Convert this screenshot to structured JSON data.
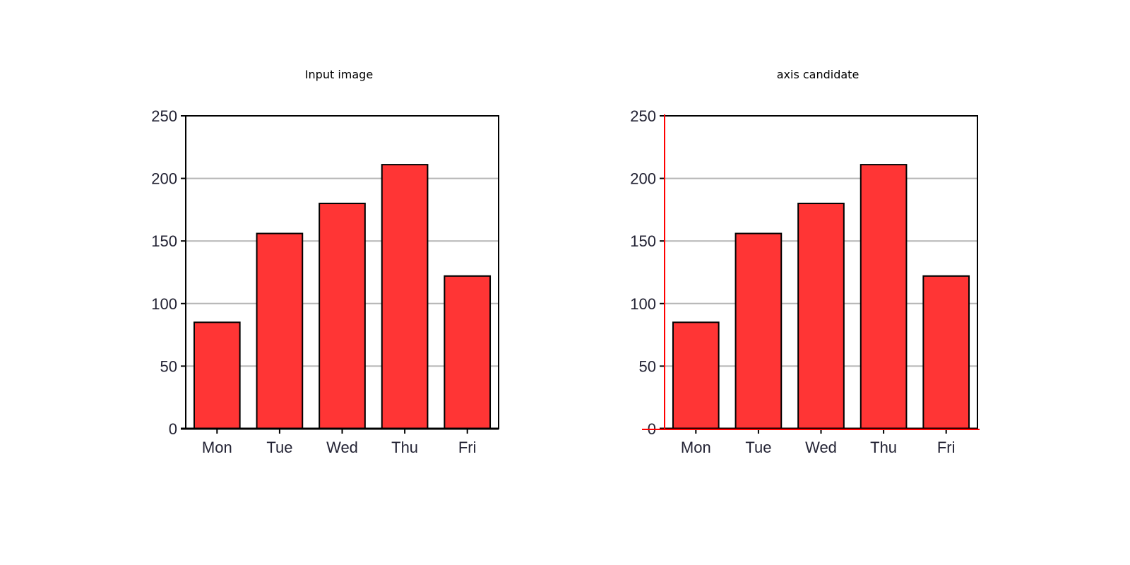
{
  "titles": {
    "left": "Input image",
    "right": "axis candidate"
  },
  "colors": {
    "bar_fill": "#ff3535",
    "bar_stroke": "#000000",
    "gridline": "#b5b5b5",
    "axis_overlay": "#ff0000",
    "tick_text": "#222233"
  },
  "chart_data": [
    {
      "type": "bar",
      "title": "Input image",
      "categories": [
        "Mon",
        "Tue",
        "Wed",
        "Thu",
        "Fri"
      ],
      "values": [
        85,
        156,
        180,
        211,
        122
      ],
      "ylim": [
        0,
        250
      ],
      "yticks": [
        0,
        50,
        100,
        150,
        200,
        250
      ],
      "grid": true,
      "axis_candidate_overlay": false
    },
    {
      "type": "bar",
      "title": "axis candidate",
      "categories": [
        "Mon",
        "Tue",
        "Wed",
        "Thu",
        "Fri"
      ],
      "values": [
        85,
        156,
        180,
        211,
        122
      ],
      "ylim": [
        0,
        250
      ],
      "yticks": [
        0,
        50,
        100,
        150,
        200,
        250
      ],
      "grid": true,
      "axis_candidate_overlay": true
    }
  ]
}
